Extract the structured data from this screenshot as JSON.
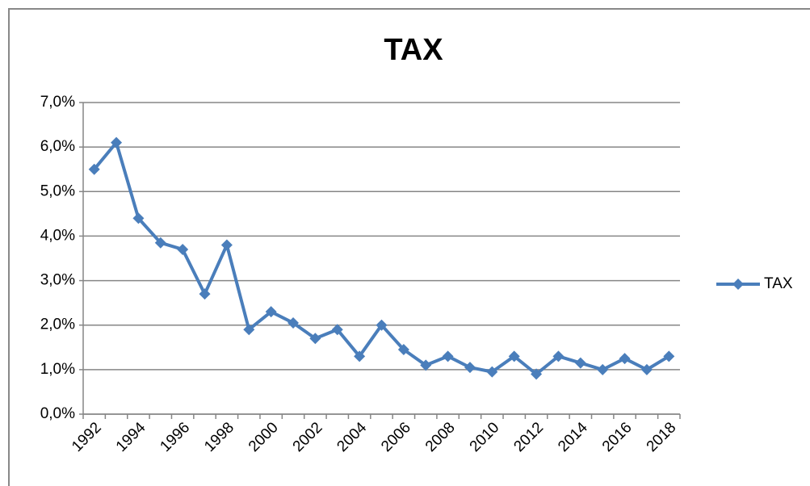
{
  "chart_data": {
    "type": "line",
    "title": "TAX",
    "categories": [
      "1992",
      null,
      "1994",
      null,
      "1996",
      null,
      "1998",
      null,
      "2000",
      null,
      "2002",
      null,
      "2004",
      null,
      "2006",
      null,
      "2008",
      null,
      "2010",
      null,
      "2012",
      null,
      "2014",
      null,
      "2016",
      null,
      "2018"
    ],
    "series": [
      {
        "name": "TAX",
        "color": "#4a7ebb",
        "values": [
          5.5,
          6.1,
          4.4,
          3.85,
          3.7,
          2.7,
          3.8,
          1.9,
          2.3,
          2.05,
          1.7,
          1.9,
          1.3,
          2.0,
          1.45,
          1.1,
          1.3,
          1.05,
          0.95,
          1.3,
          0.9,
          1.3,
          1.15,
          1.0,
          1.25,
          1.0,
          1.3
        ]
      }
    ],
    "ylim": [
      0,
      7
    ],
    "yticks": [
      {
        "value": 0,
        "label": "0,0%"
      },
      {
        "value": 1,
        "label": "1,0%"
      },
      {
        "value": 2,
        "label": "2,0%"
      },
      {
        "value": 3,
        "label": "3,0%"
      },
      {
        "value": 4,
        "label": "4,0%"
      },
      {
        "value": 5,
        "label": "5,0%"
      },
      {
        "value": 6,
        "label": "6,0%"
      },
      {
        "value": 7,
        "label": "7,0%"
      }
    ],
    "grid": true,
    "legend": "right"
  }
}
